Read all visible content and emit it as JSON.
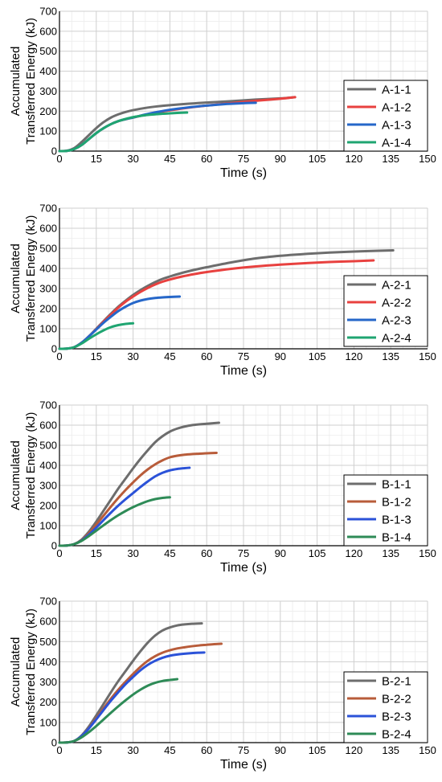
{
  "chart_data": [
    {
      "type": "line",
      "xlabel": "Time (s)",
      "ylabel_lines": [
        "Accumulated",
        "Transferred Energy (kJ)"
      ],
      "xlim": [
        0,
        150
      ],
      "ylim": [
        0,
        700
      ],
      "xticks": [
        0,
        15,
        30,
        45,
        60,
        75,
        90,
        105,
        120,
        135,
        150
      ],
      "yticks": [
        0,
        100,
        200,
        300,
        400,
        500,
        600,
        700
      ],
      "grid": true,
      "legend_position": "bottom-right",
      "series": [
        {
          "name": "A-1-1",
          "color": "#6d6d6d",
          "x": [
            0,
            3,
            6,
            9,
            12,
            15,
            18,
            21,
            24,
            27,
            30,
            35,
            40,
            45,
            50,
            55,
            60,
            70,
            80,
            90,
            96
          ],
          "y": [
            0,
            2,
            15,
            45,
            80,
            115,
            145,
            168,
            184,
            196,
            205,
            216,
            224,
            230,
            235,
            239,
            243,
            250,
            258,
            264,
            270
          ]
        },
        {
          "name": "A-1-2",
          "color": "#e8413f",
          "x": [
            0,
            3,
            6,
            9,
            12,
            15,
            18,
            21,
            24,
            27,
            30,
            35,
            40,
            45,
            50,
            55,
            60,
            70,
            80,
            90,
            96
          ],
          "y": [
            0,
            1,
            10,
            30,
            60,
            90,
            115,
            135,
            150,
            160,
            168,
            182,
            194,
            204,
            213,
            221,
            228,
            240,
            252,
            262,
            270
          ]
        },
        {
          "name": "A-1-3",
          "color": "#2667c9",
          "x": [
            0,
            3,
            6,
            9,
            12,
            15,
            18,
            21,
            24,
            27,
            30,
            35,
            40,
            45,
            50,
            55,
            60,
            65,
            70,
            75,
            80
          ],
          "y": [
            0,
            1,
            10,
            30,
            60,
            90,
            115,
            135,
            150,
            160,
            168,
            183,
            196,
            207,
            215,
            222,
            228,
            233,
            237,
            240,
            242
          ]
        },
        {
          "name": "A-1-4",
          "color": "#1fa571",
          "x": [
            0,
            3,
            6,
            9,
            12,
            15,
            18,
            21,
            24,
            27,
            30,
            33,
            36,
            39,
            42,
            45,
            48,
            52
          ],
          "y": [
            0,
            1,
            10,
            30,
            60,
            90,
            115,
            135,
            150,
            161,
            170,
            176,
            181,
            184,
            187,
            189,
            191,
            193
          ]
        }
      ]
    },
    {
      "type": "line",
      "xlabel": "Time (s)",
      "ylabel_lines": [
        "Accumulated",
        "Transferred Energy (kJ)"
      ],
      "xlim": [
        0,
        150
      ],
      "ylim": [
        0,
        700
      ],
      "xticks": [
        0,
        15,
        30,
        45,
        60,
        75,
        90,
        105,
        120,
        135,
        150
      ],
      "yticks": [
        0,
        100,
        200,
        300,
        400,
        500,
        600,
        700
      ],
      "grid": true,
      "legend_position": "right",
      "series": [
        {
          "name": "A-2-1",
          "color": "#6d6d6d",
          "x": [
            0,
            3,
            6,
            9,
            12,
            15,
            18,
            21,
            24,
            27,
            30,
            33,
            36,
            39,
            42,
            45,
            50,
            55,
            60,
            70,
            80,
            90,
            100,
            110,
            120,
            130,
            136
          ],
          "y": [
            0,
            1,
            8,
            30,
            62,
            100,
            138,
            175,
            210,
            240,
            268,
            292,
            313,
            332,
            348,
            360,
            378,
            393,
            406,
            430,
            450,
            463,
            472,
            479,
            484,
            488,
            490
          ]
        },
        {
          "name": "A-2-2",
          "color": "#e8413f",
          "x": [
            0,
            3,
            6,
            9,
            12,
            15,
            18,
            21,
            24,
            27,
            30,
            33,
            36,
            39,
            42,
            45,
            50,
            55,
            60,
            70,
            80,
            90,
            100,
            110,
            120,
            128
          ],
          "y": [
            0,
            1,
            8,
            30,
            62,
            98,
            135,
            170,
            205,
            235,
            260,
            283,
            303,
            320,
            334,
            345,
            360,
            372,
            382,
            398,
            410,
            419,
            426,
            432,
            436,
            440
          ]
        },
        {
          "name": "A-2-3",
          "color": "#2667c9",
          "x": [
            0,
            3,
            6,
            9,
            12,
            15,
            18,
            21,
            24,
            27,
            30,
            33,
            36,
            39,
            42,
            45,
            49
          ],
          "y": [
            0,
            1,
            8,
            30,
            62,
            96,
            130,
            160,
            188,
            210,
            228,
            240,
            248,
            253,
            256,
            258,
            260
          ]
        },
        {
          "name": "A-2-4",
          "color": "#1fa571",
          "x": [
            0,
            3,
            6,
            9,
            12,
            15,
            18,
            21,
            24,
            27,
            30
          ],
          "y": [
            0,
            1,
            8,
            26,
            50,
            72,
            92,
            108,
            118,
            124,
            127
          ]
        }
      ]
    },
    {
      "type": "line",
      "xlabel": "Time (s)",
      "ylabel_lines": [
        "Accumulated",
        "Transferred Energy (kJ)"
      ],
      "xlim": [
        0,
        150
      ],
      "ylim": [
        0,
        700
      ],
      "xticks": [
        0,
        15,
        30,
        45,
        60,
        75,
        90,
        105,
        120,
        135,
        150
      ],
      "yticks": [
        0,
        100,
        200,
        300,
        400,
        500,
        600,
        700
      ],
      "grid": true,
      "legend_position": "bottom-right",
      "series": [
        {
          "name": "B-1-1",
          "color": "#6d6d6d",
          "x": [
            0,
            3,
            6,
            9,
            12,
            15,
            18,
            21,
            24,
            27,
            30,
            33,
            36,
            39,
            42,
            45,
            48,
            51,
            54,
            57,
            60,
            63,
            65
          ],
          "y": [
            0,
            1,
            8,
            30,
            70,
            120,
            175,
            230,
            285,
            335,
            385,
            432,
            475,
            515,
            545,
            568,
            583,
            593,
            600,
            604,
            607,
            610,
            612
          ]
        },
        {
          "name": "B-1-2",
          "color": "#b85c3a",
          "x": [
            0,
            3,
            6,
            9,
            12,
            15,
            18,
            21,
            24,
            27,
            30,
            33,
            36,
            39,
            42,
            45,
            48,
            51,
            54,
            57,
            60,
            64
          ],
          "y": [
            0,
            1,
            8,
            28,
            62,
            105,
            150,
            195,
            238,
            278,
            315,
            350,
            380,
            405,
            425,
            440,
            448,
            453,
            456,
            458,
            460,
            462
          ]
        },
        {
          "name": "B-1-3",
          "color": "#2b52d8",
          "x": [
            0,
            3,
            6,
            9,
            12,
            15,
            18,
            21,
            24,
            27,
            30,
            33,
            36,
            39,
            42,
            45,
            48,
            51,
            53
          ],
          "y": [
            0,
            1,
            8,
            26,
            55,
            90,
            128,
            165,
            200,
            232,
            262,
            292,
            320,
            345,
            363,
            375,
            382,
            386,
            388
          ]
        },
        {
          "name": "B-1-4",
          "color": "#2e8b57",
          "x": [
            0,
            3,
            6,
            9,
            12,
            15,
            18,
            21,
            24,
            27,
            30,
            33,
            36,
            39,
            42,
            45
          ],
          "y": [
            0,
            1,
            8,
            24,
            48,
            75,
            102,
            128,
            152,
            173,
            192,
            208,
            222,
            232,
            238,
            241
          ]
        }
      ]
    },
    {
      "type": "line",
      "xlabel": "Time (s)",
      "ylabel_lines": [
        "Accumulated",
        "Transferred Energy (kJ)"
      ],
      "xlim": [
        0,
        150
      ],
      "ylim": [
        0,
        700
      ],
      "xticks": [
        0,
        15,
        30,
        45,
        60,
        75,
        90,
        105,
        120,
        135,
        150
      ],
      "yticks": [
        0,
        100,
        200,
        300,
        400,
        500,
        600,
        700
      ],
      "grid": true,
      "legend_position": "bottom-right",
      "series": [
        {
          "name": "B-2-1",
          "color": "#6d6d6d",
          "x": [
            0,
            3,
            6,
            9,
            12,
            15,
            18,
            21,
            24,
            27,
            30,
            33,
            36,
            39,
            42,
            45,
            48,
            51,
            54,
            58
          ],
          "y": [
            0,
            1,
            8,
            35,
            80,
            135,
            192,
            250,
            305,
            355,
            405,
            452,
            495,
            530,
            555,
            570,
            580,
            585,
            588,
            590
          ]
        },
        {
          "name": "B-2-2",
          "color": "#b85c3a",
          "x": [
            0,
            3,
            6,
            9,
            12,
            15,
            18,
            21,
            24,
            27,
            30,
            33,
            36,
            39,
            42,
            45,
            48,
            51,
            54,
            57,
            60,
            63,
            66
          ],
          "y": [
            0,
            1,
            8,
            32,
            72,
            120,
            170,
            218,
            262,
            302,
            340,
            375,
            405,
            428,
            445,
            457,
            466,
            472,
            477,
            481,
            484,
            487,
            489
          ]
        },
        {
          "name": "B-2-3",
          "color": "#2b52d8",
          "x": [
            0,
            3,
            6,
            9,
            12,
            15,
            18,
            21,
            24,
            27,
            30,
            33,
            36,
            39,
            42,
            45,
            48,
            51,
            54,
            57,
            59
          ],
          "y": [
            0,
            1,
            8,
            32,
            70,
            115,
            162,
            208,
            250,
            290,
            325,
            358,
            385,
            405,
            420,
            430,
            436,
            440,
            443,
            445,
            446
          ]
        },
        {
          "name": "B-2-4",
          "color": "#2e8b57",
          "x": [
            0,
            3,
            6,
            9,
            12,
            15,
            18,
            21,
            24,
            27,
            30,
            33,
            36,
            39,
            42,
            45,
            48
          ],
          "y": [
            0,
            1,
            8,
            26,
            52,
            82,
            115,
            148,
            180,
            210,
            238,
            262,
            282,
            296,
            305,
            310,
            314
          ]
        }
      ]
    }
  ]
}
